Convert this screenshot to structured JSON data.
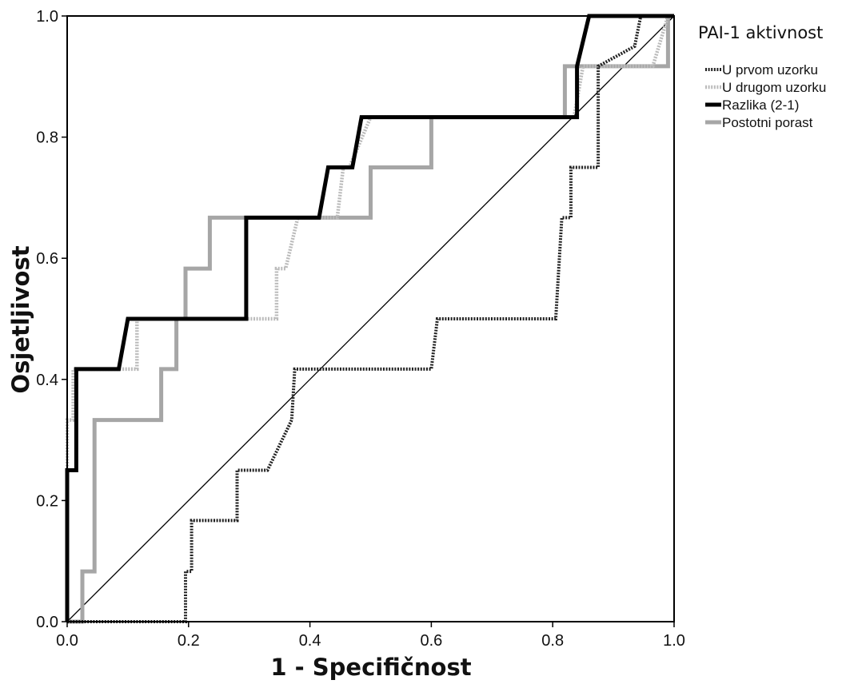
{
  "chart_data": {
    "type": "line",
    "xlabel": "1 - Specifičnost",
    "ylabel": "Osjetljivost",
    "xlim": [
      0,
      1
    ],
    "ylim": [
      0,
      1
    ],
    "x_ticks": [
      "0.0",
      "0.2",
      "0.4",
      "0.6",
      "0.8",
      "1.0"
    ],
    "y_ticks": [
      "0.0",
      "0.2",
      "0.4",
      "0.6",
      "0.8",
      "1.0"
    ],
    "grid": false,
    "legend": {
      "title": "PAI-1 aktivnost",
      "placement": "right"
    },
    "reference_line": {
      "from": [
        0,
        0
      ],
      "to": [
        1,
        1
      ]
    },
    "series": [
      {
        "name": "U prvom uzorku",
        "color": "#222222",
        "style": "dotted-black",
        "points": [
          [
            0,
            0
          ],
          [
            0.195,
            0
          ],
          [
            0.195,
            0.083
          ],
          [
            0.205,
            0.083
          ],
          [
            0.205,
            0.167
          ],
          [
            0.28,
            0.167
          ],
          [
            0.28,
            0.25
          ],
          [
            0.33,
            0.25
          ],
          [
            0.37,
            0.333
          ],
          [
            0.375,
            0.417
          ],
          [
            0.6,
            0.417
          ],
          [
            0.61,
            0.5
          ],
          [
            0.805,
            0.5
          ],
          [
            0.815,
            0.667
          ],
          [
            0.83,
            0.667
          ],
          [
            0.83,
            0.75
          ],
          [
            0.875,
            0.75
          ],
          [
            0.875,
            0.917
          ],
          [
            0.875,
            0.917
          ],
          [
            0.935,
            0.95
          ],
          [
            0.945,
            1.0
          ],
          [
            1.0,
            1.0
          ]
        ]
      },
      {
        "name": "U drugom uzorku",
        "color": "#bbbbbb",
        "style": "dotted-gray",
        "points": [
          [
            0,
            0
          ],
          [
            0,
            0.333
          ],
          [
            0.01,
            0.333
          ],
          [
            0.01,
            0.417
          ],
          [
            0.115,
            0.417
          ],
          [
            0.115,
            0.5
          ],
          [
            0.345,
            0.5
          ],
          [
            0.345,
            0.583
          ],
          [
            0.36,
            0.583
          ],
          [
            0.38,
            0.667
          ],
          [
            0.445,
            0.667
          ],
          [
            0.455,
            0.75
          ],
          [
            0.465,
            0.75
          ],
          [
            0.5,
            0.833
          ],
          [
            0.835,
            0.833
          ],
          [
            0.85,
            0.917
          ],
          [
            0.965,
            0.917
          ],
          [
            0.99,
            1.0
          ],
          [
            1.0,
            1.0
          ]
        ]
      },
      {
        "name": "Razlika (2-1)",
        "color": "#000000",
        "style": "solid-black",
        "points": [
          [
            0,
            0
          ],
          [
            0,
            0.25
          ],
          [
            0.015,
            0.25
          ],
          [
            0.015,
            0.417
          ],
          [
            0.085,
            0.417
          ],
          [
            0.1,
            0.5
          ],
          [
            0.295,
            0.5
          ],
          [
            0.295,
            0.667
          ],
          [
            0.415,
            0.667
          ],
          [
            0.43,
            0.75
          ],
          [
            0.47,
            0.75
          ],
          [
            0.485,
            0.833
          ],
          [
            0.84,
            0.833
          ],
          [
            0.84,
            0.917
          ],
          [
            0.86,
            1.0
          ],
          [
            1.0,
            1.0
          ]
        ]
      },
      {
        "name": "Postotni porast",
        "color": "#a6a6a6",
        "style": "solid-gray",
        "points": [
          [
            0,
            0
          ],
          [
            0.025,
            0
          ],
          [
            0.025,
            0.083
          ],
          [
            0.045,
            0.083
          ],
          [
            0.045,
            0.333
          ],
          [
            0.155,
            0.333
          ],
          [
            0.155,
            0.417
          ],
          [
            0.18,
            0.417
          ],
          [
            0.18,
            0.5
          ],
          [
            0.195,
            0.5
          ],
          [
            0.195,
            0.583
          ],
          [
            0.235,
            0.583
          ],
          [
            0.235,
            0.667
          ],
          [
            0.5,
            0.667
          ],
          [
            0.5,
            0.75
          ],
          [
            0.6,
            0.75
          ],
          [
            0.6,
            0.833
          ],
          [
            0.82,
            0.833
          ],
          [
            0.82,
            0.917
          ],
          [
            0.99,
            0.917
          ],
          [
            0.99,
            1.0
          ],
          [
            1.0,
            1.0
          ]
        ]
      }
    ]
  }
}
